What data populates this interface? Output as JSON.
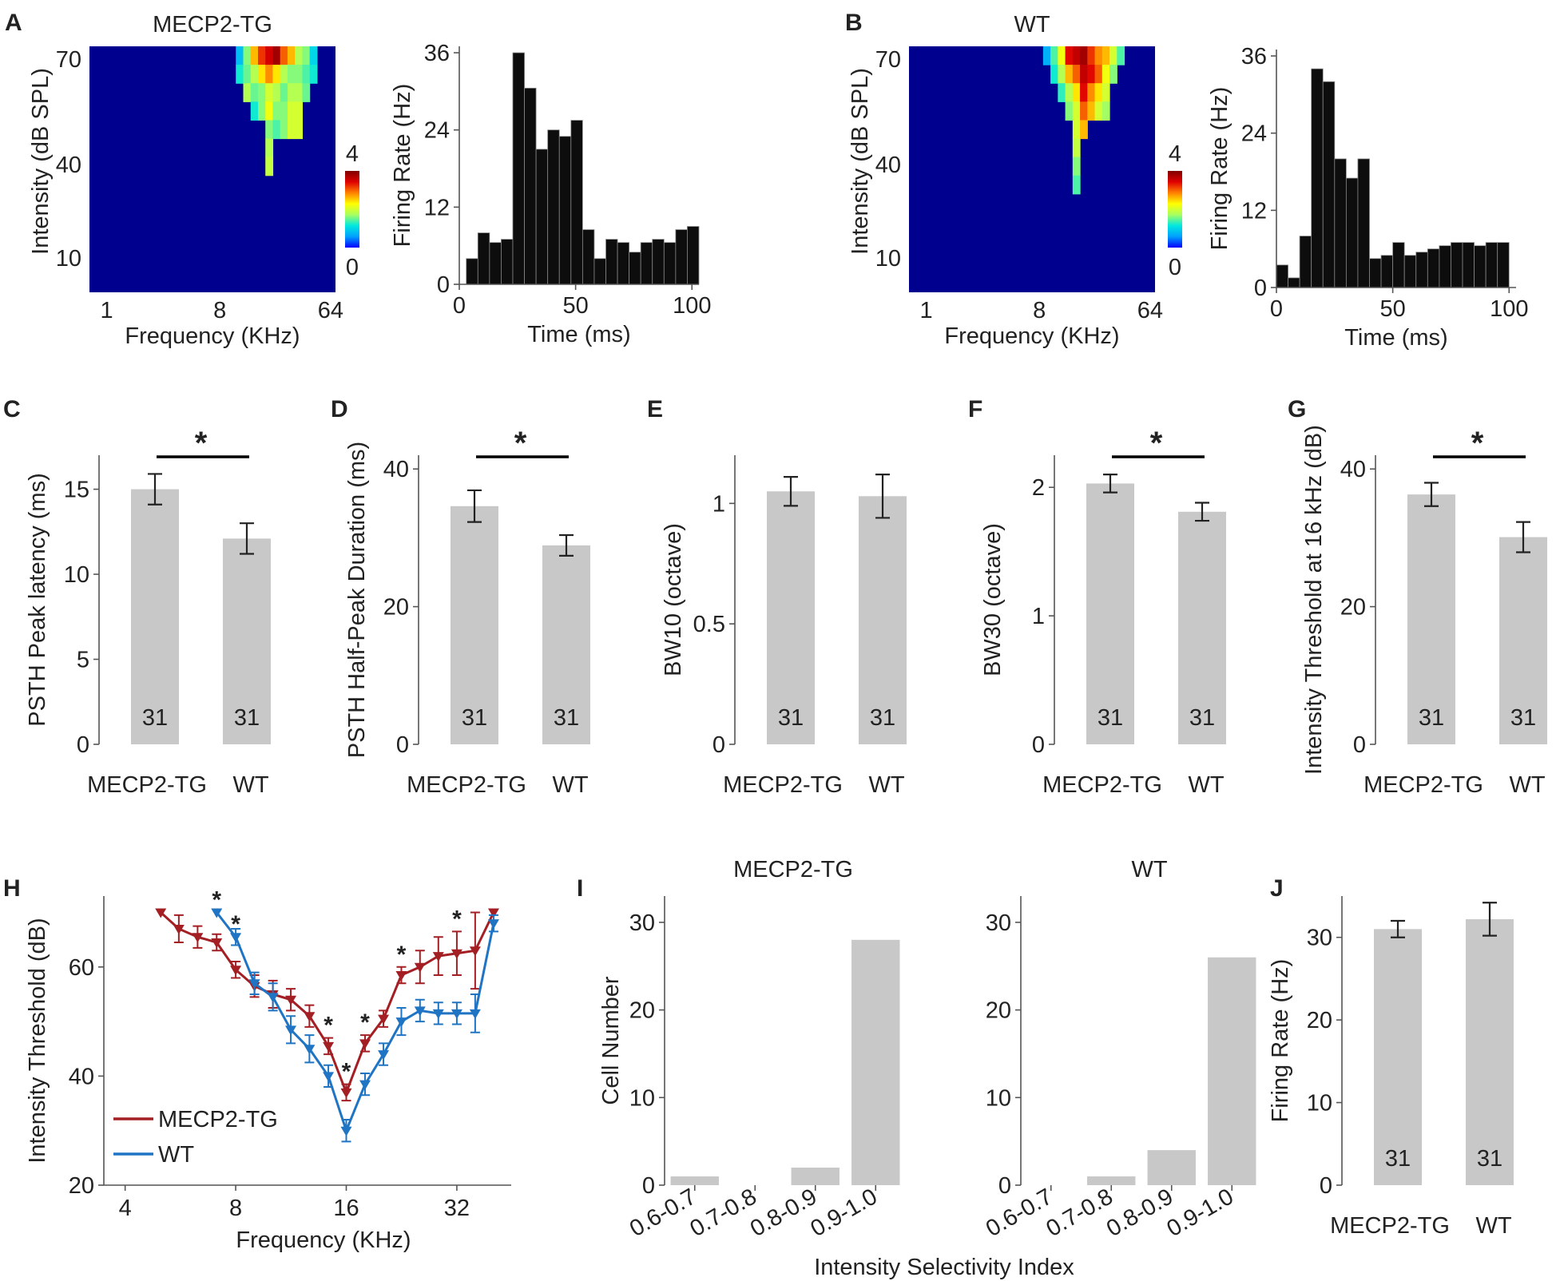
{
  "colors": {
    "bar": "#c8c8c8",
    "psth": "#0d0d0d",
    "tg": "#a31f24",
    "wt": "#1f74c4",
    "heatmap_bg": "#00008f"
  },
  "colorbar_stops": [
    "#0000ff",
    "#00a0ff",
    "#00e8e0",
    "#a8ff60",
    "#ffff00",
    "#ff8000",
    "#e00000",
    "#800000"
  ],
  "panel_labels": {
    "A": "A",
    "B": "B",
    "C": "C",
    "D": "D",
    "E": "E",
    "F": "F",
    "G": "G",
    "H": "H",
    "I": "I",
    "J": "J"
  },
  "sig_mark": "*",
  "chart_data": [
    {
      "id": "A-heat",
      "type": "heatmap",
      "title": "MECP2-TG",
      "xlabel": "Frequency (KHz)",
      "ylabel": "Intensity (dB SPL)",
      "x_ticks": [
        "1",
        "8",
        "64"
      ],
      "y_ticks": [
        "70",
        "40",
        "10"
      ],
      "colorbar": {
        "min": "0",
        "max": "4"
      },
      "columns": [
        {
          "f": 0.61,
          "levels": [
            0.8,
            1.2
          ]
        },
        {
          "f": 0.64,
          "levels": [
            1.6,
            1.5,
            1.8
          ]
        },
        {
          "f": 0.67,
          "levels": [
            2.6,
            1.8,
            1.5,
            1.2
          ]
        },
        {
          "f": 0.7,
          "levels": [
            3.2,
            2.4,
            1.6,
            1.6
          ]
        },
        {
          "f": 0.73,
          "levels": [
            3.5,
            2.8,
            2.0,
            2.2,
            1.6,
            1.8,
            1.9
          ]
        },
        {
          "f": 0.76,
          "levels": [
            3.8,
            2.4,
            1.8,
            1.6,
            1.4
          ]
        },
        {
          "f": 0.79,
          "levels": [
            3.0,
            1.8,
            1.5,
            1.6,
            1.6
          ]
        },
        {
          "f": 0.82,
          "levels": [
            2.6,
            1.6,
            1.8,
            2.0,
            2.0
          ]
        },
        {
          "f": 0.85,
          "levels": [
            1.8,
            1.6,
            1.8,
            2.0,
            2.0
          ]
        },
        {
          "f": 0.88,
          "levels": [
            1.6,
            1.4,
            1.5
          ]
        },
        {
          "f": 0.91,
          "levels": [
            1.0,
            1.2
          ]
        }
      ]
    },
    {
      "id": "A-psth",
      "type": "bar",
      "xlabel": "Time (ms)",
      "ylabel": "Firing Rate (Hz)",
      "x_ticks": [
        0,
        50,
        100
      ],
      "y_ticks": [
        0,
        12,
        24,
        36
      ],
      "xlim": [
        0,
        103
      ],
      "ylim": [
        0,
        37
      ],
      "bin_width": 5,
      "bin_starts": [
        3,
        8,
        13,
        18,
        23,
        28,
        33,
        38,
        43,
        48,
        53,
        58,
        63,
        68,
        73,
        78,
        83,
        88,
        93,
        98
      ],
      "values": [
        4,
        8,
        6.5,
        7,
        36,
        30.5,
        21,
        24,
        23,
        25.5,
        8.5,
        4,
        7,
        6.5,
        5,
        6.5,
        7,
        6.5,
        8.5,
        9
      ]
    },
    {
      "id": "B-heat",
      "type": "heatmap",
      "title": "WT",
      "xlabel": "Frequency (KHz)",
      "ylabel": "Intensity (dB SPL)",
      "x_ticks": [
        "1",
        "8",
        "64"
      ],
      "y_ticks": [
        "70",
        "40",
        "10"
      ],
      "colorbar": {
        "min": "0",
        "max": "4"
      },
      "columns": [
        {
          "f": 0.56,
          "levels": [
            0.7
          ]
        },
        {
          "f": 0.59,
          "levels": [
            1.4,
            1.2
          ]
        },
        {
          "f": 0.62,
          "levels": [
            2.2,
            1.8,
            1.3
          ]
        },
        {
          "f": 0.65,
          "levels": [
            3.4,
            2.6,
            1.8,
            1.6
          ]
        },
        {
          "f": 0.68,
          "levels": [
            3.6,
            3.0,
            2.4,
            2.0,
            2.0,
            1.9,
            1.6,
            1.4
          ]
        },
        {
          "f": 0.71,
          "levels": [
            3.8,
            3.6,
            3.4,
            3.0,
            2.6
          ]
        },
        {
          "f": 0.74,
          "levels": [
            3.2,
            3.4,
            2.8,
            2.6
          ]
        },
        {
          "f": 0.77,
          "levels": [
            2.8,
            3.0,
            2.4,
            2.0
          ]
        },
        {
          "f": 0.8,
          "levels": [
            2.6,
            2.2,
            2.0,
            1.7
          ]
        },
        {
          "f": 0.83,
          "levels": [
            2.0,
            1.6
          ]
        },
        {
          "f": 0.86,
          "levels": [
            1.4
          ]
        }
      ]
    },
    {
      "id": "B-psth",
      "type": "bar",
      "xlabel": "Time (ms)",
      "ylabel": "Firing Rate (Hz)",
      "x_ticks": [
        0,
        50,
        100
      ],
      "y_ticks": [
        0,
        12,
        24,
        36
      ],
      "xlim": [
        0,
        103
      ],
      "ylim": [
        0,
        37
      ],
      "bin_width": 5,
      "bin_starts": [
        0,
        5,
        10,
        15,
        20,
        25,
        30,
        35,
        40,
        45,
        50,
        55,
        60,
        65,
        70,
        75,
        80,
        85,
        90,
        95
      ],
      "values": [
        3.5,
        1.5,
        8,
        34,
        32,
        20,
        17,
        20,
        4.5,
        5,
        7,
        5,
        5.5,
        6,
        6.5,
        7,
        7,
        6.5,
        7,
        7
      ]
    },
    {
      "id": "C",
      "type": "bar",
      "categories": [
        "MECP2-TG",
        "WT"
      ],
      "values": [
        15.0,
        12.1
      ],
      "errors": [
        0.9,
        0.9
      ],
      "n": [
        "31",
        "31"
      ],
      "ylabel": "PSTH Peak latency (ms)",
      "ylim": [
        0,
        17
      ],
      "y_ticks": [
        0,
        5,
        10,
        15
      ],
      "significant": true
    },
    {
      "id": "D",
      "type": "bar",
      "categories": [
        "MECP2-TG",
        "WT"
      ],
      "values": [
        34.6,
        28.9
      ],
      "errors": [
        2.3,
        1.5
      ],
      "n": [
        "31",
        "31"
      ],
      "ylabel": "PSTH Half-Peak Duration (ms)",
      "ylim": [
        0,
        42
      ],
      "y_ticks": [
        0,
        20,
        40
      ],
      "significant": true
    },
    {
      "id": "E",
      "type": "bar",
      "categories": [
        "MECP2-TG",
        "WT"
      ],
      "values": [
        1.05,
        1.03
      ],
      "errors": [
        0.06,
        0.09
      ],
      "n": [
        "31",
        "31"
      ],
      "ylabel": "BW10 (octave)",
      "ylim": [
        0,
        1.2
      ],
      "y_ticks": [
        0,
        0.5,
        1
      ],
      "significant": false
    },
    {
      "id": "F",
      "type": "bar",
      "categories": [
        "MECP2-TG",
        "WT"
      ],
      "values": [
        2.03,
        1.81
      ],
      "errors": [
        0.07,
        0.07
      ],
      "n": [
        "31",
        "31"
      ],
      "ylabel": "BW30 (octave)",
      "ylim": [
        0,
        2.25
      ],
      "y_ticks": [
        0,
        1,
        2
      ],
      "significant": true
    },
    {
      "id": "G",
      "type": "bar",
      "categories": [
        "MECP2-TG",
        "WT"
      ],
      "values": [
        36.3,
        30.1
      ],
      "errors": [
        1.7,
        2.2
      ],
      "n": [
        "31",
        "31"
      ],
      "ylabel": "Intensity Threshold at 16 kHz (dB)",
      "ylim": [
        0,
        42
      ],
      "y_ticks": [
        0,
        20,
        40
      ],
      "significant": true
    },
    {
      "id": "H",
      "type": "line",
      "xlabel": "Frequency (KHz)",
      "ylabel": "Intensity Threshold (dB)",
      "x_ticks": [
        4,
        8,
        16,
        32
      ],
      "y_ticks": [
        20,
        40,
        60
      ],
      "xlim": [
        3.5,
        45
      ],
      "ylim": [
        20,
        73
      ],
      "x_scale": "log2",
      "legend": [
        "MECP2-TG",
        "WT"
      ],
      "series": [
        {
          "name": "MECP2-TG",
          "x": [
            5.0,
            5.6,
            6.3,
            7.1,
            8.0,
            9.0,
            10.1,
            11.3,
            12.7,
            14.3,
            16.0,
            18.0,
            20.2,
            22.6,
            25.4,
            28.5,
            32.0,
            35.9,
            40.3
          ],
          "y": [
            70,
            67,
            65.5,
            64.5,
            59.5,
            56.5,
            55,
            54,
            51,
            45.5,
            37,
            46,
            50.5,
            58.5,
            60,
            62,
            62.5,
            63,
            70
          ],
          "err": [
            0,
            2.5,
            2,
            1.5,
            1.5,
            2,
            2.5,
            2,
            2,
            1.5,
            1.5,
            1.5,
            1.5,
            1.5,
            3,
            3.5,
            4,
            7,
            0
          ]
        },
        {
          "name": "WT",
          "x": [
            7.1,
            8.0,
            9.0,
            10.1,
            11.3,
            12.7,
            14.3,
            16.0,
            18.0,
            20.2,
            22.6,
            25.4,
            28.5,
            32.0,
            35.9,
            40.3
          ],
          "y": [
            70,
            65.5,
            57,
            54.5,
            48.5,
            45,
            40,
            30,
            38.5,
            44,
            50,
            52,
            51.5,
            51.5,
            51.5,
            68
          ],
          "err": [
            0,
            1.5,
            2,
            2.5,
            2.5,
            2.5,
            2,
            2,
            2,
            2,
            2.5,
            2,
            2,
            2,
            3.5,
            1.5
          ]
        }
      ],
      "sig_x": [
        7.1,
        8.0,
        14.3,
        16.0,
        18.0,
        22.6,
        32.0
      ]
    },
    {
      "id": "I-TG",
      "type": "bar",
      "title": "MECP2-TG",
      "categories": [
        "0.6-0.7",
        "0.7-0.8",
        "0.8-0.9",
        "0.9-1.0"
      ],
      "values": [
        1,
        0,
        2,
        28
      ],
      "ylabel": "Cell Number",
      "ylim": [
        0,
        33
      ],
      "y_ticks": [
        0,
        10,
        20,
        30
      ]
    },
    {
      "id": "I-WT",
      "type": "bar",
      "title": "WT",
      "xlabel": "Intensity Selectivity Index",
      "categories": [
        "0.6-0.7",
        "0.7-0.8",
        "0.8-0.9",
        "0.9-1.0"
      ],
      "values": [
        0,
        1,
        4,
        26
      ],
      "ylim": [
        0,
        33
      ],
      "y_ticks": [
        0,
        10,
        20,
        30
      ]
    },
    {
      "id": "J",
      "type": "bar",
      "categories": [
        "MECP2-TG",
        "WT"
      ],
      "values": [
        31,
        32.2
      ],
      "errors": [
        1.0,
        2.0
      ],
      "n": [
        "31",
        "31"
      ],
      "ylabel": "Firing Rate (Hz)",
      "ylim": [
        0,
        35
      ],
      "y_ticks": [
        0,
        10,
        20,
        30
      ],
      "significant": false
    }
  ]
}
